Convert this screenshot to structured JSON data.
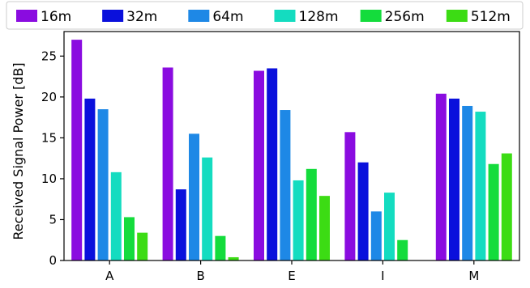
{
  "chart_data": {
    "type": "bar",
    "title": "",
    "xlabel": "",
    "ylabel": "Received Signal Power [dB]",
    "ylim": [
      0,
      28
    ],
    "yticks": [
      0,
      5,
      10,
      15,
      20,
      25
    ],
    "categories": [
      "A",
      "B",
      "E",
      "I",
      "M"
    ],
    "legend_placement": "top",
    "grid": false,
    "series": [
      {
        "name": "16m",
        "color": "#8A0CE0",
        "values": [
          27.0,
          23.6,
          23.2,
          15.7,
          20.4
        ]
      },
      {
        "name": "32m",
        "color": "#0A10DC",
        "values": [
          19.8,
          8.7,
          23.5,
          12.0,
          19.8
        ]
      },
      {
        "name": "64m",
        "color": "#1E88E6",
        "values": [
          18.5,
          15.5,
          18.4,
          6.0,
          18.9
        ]
      },
      {
        "name": "128m",
        "color": "#14DCC0",
        "values": [
          10.8,
          12.6,
          9.8,
          8.3,
          18.2
        ]
      },
      {
        "name": "256m",
        "color": "#14DC3C",
        "values": [
          5.3,
          3.0,
          11.2,
          2.5,
          11.8
        ]
      },
      {
        "name": "512m",
        "color": "#3CDC14",
        "values": [
          3.4,
          0.4,
          7.9,
          0.0,
          13.1
        ]
      }
    ]
  }
}
